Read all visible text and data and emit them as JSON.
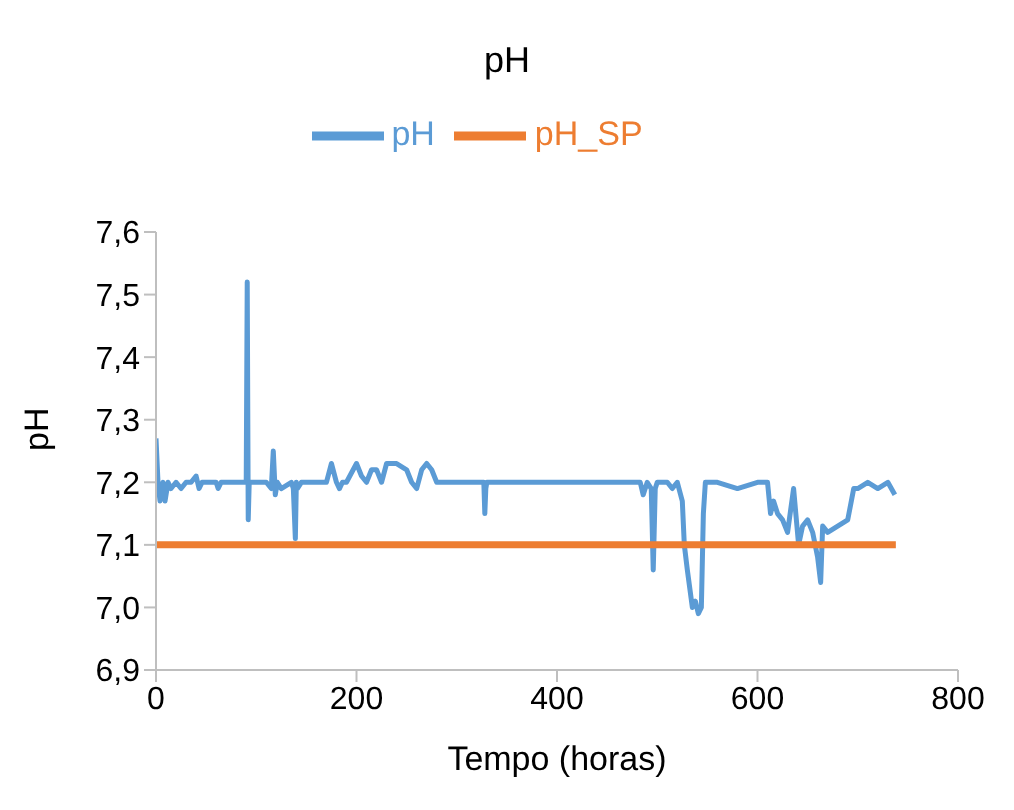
{
  "chart_data": {
    "type": "line",
    "title": "pH",
    "xlabel": "Tempo (horas)",
    "ylabel": "pH",
    "legend": "top",
    "grid": false,
    "marker": "none",
    "xlim": [
      0,
      800
    ],
    "xticks": [
      0,
      200,
      400,
      600,
      800
    ],
    "ylim": [
      6.9,
      7.6
    ],
    "yticks": [
      {
        "value": 6.9,
        "label": "6,9"
      },
      {
        "value": 7.0,
        "label": "7,0"
      },
      {
        "value": 7.1,
        "label": "7,1"
      },
      {
        "value": 7.2,
        "label": "7,2"
      },
      {
        "value": 7.3,
        "label": "7,3"
      },
      {
        "value": 7.4,
        "label": "7,4"
      },
      {
        "value": 7.5,
        "label": "7,5"
      },
      {
        "value": 7.6,
        "label": "7,6"
      }
    ],
    "series": [
      {
        "name": "pH",
        "color": "#5b9bd5",
        "x": [
          0,
          2,
          4,
          5,
          7,
          9,
          12,
          15,
          20,
          25,
          30,
          35,
          40,
          43,
          46,
          50,
          55,
          60,
          62,
          65,
          70,
          75,
          88,
          90,
          91,
          92,
          93,
          95,
          110,
          115,
          117,
          119,
          121,
          125,
          135,
          137,
          139,
          140,
          141,
          145,
          170,
          175,
          180,
          183,
          186,
          190,
          200,
          205,
          210,
          215,
          220,
          225,
          230,
          240,
          250,
          255,
          260,
          265,
          270,
          275,
          280,
          300,
          327,
          328,
          329,
          330,
          340,
          480,
          483,
          486,
          490,
          494,
          496,
          498,
          500,
          505,
          510,
          515,
          520,
          525,
          527,
          530,
          535,
          538,
          541,
          544,
          546,
          548,
          552,
          560,
          580,
          600,
          610,
          613,
          616,
          620,
          625,
          630,
          636,
          641,
          645,
          650,
          655,
          660,
          663,
          665,
          670,
          680,
          690,
          696,
          700,
          710,
          720,
          730,
          737
        ],
        "values": [
          7.27,
          7.2,
          7.17,
          7.19,
          7.2,
          7.17,
          7.2,
          7.19,
          7.2,
          7.19,
          7.2,
          7.2,
          7.21,
          7.19,
          7.2,
          7.2,
          7.2,
          7.2,
          7.19,
          7.2,
          7.2,
          7.2,
          7.2,
          7.2,
          7.52,
          7.14,
          7.2,
          7.2,
          7.2,
          7.19,
          7.25,
          7.18,
          7.2,
          7.19,
          7.2,
          7.19,
          7.11,
          7.2,
          7.19,
          7.2,
          7.2,
          7.23,
          7.2,
          7.19,
          7.2,
          7.2,
          7.23,
          7.21,
          7.2,
          7.22,
          7.22,
          7.2,
          7.23,
          7.23,
          7.22,
          7.2,
          7.19,
          7.22,
          7.23,
          7.22,
          7.2,
          7.2,
          7.2,
          7.15,
          7.19,
          7.2,
          7.2,
          7.2,
          7.2,
          7.18,
          7.2,
          7.19,
          7.06,
          7.19,
          7.2,
          7.2,
          7.2,
          7.19,
          7.2,
          7.17,
          7.1,
          7.06,
          7.0,
          7.01,
          6.99,
          7.0,
          7.15,
          7.2,
          7.2,
          7.2,
          7.19,
          7.2,
          7.2,
          7.15,
          7.17,
          7.15,
          7.14,
          7.12,
          7.19,
          7.1,
          7.13,
          7.14,
          7.12,
          7.08,
          7.04,
          7.13,
          7.12,
          7.13,
          7.14,
          7.19,
          7.19,
          7.2,
          7.19,
          7.2,
          7.18
        ]
      },
      {
        "name": "pH_SP",
        "color": "#ed7d31",
        "x": [
          0,
          738
        ],
        "values": [
          7.1,
          7.1
        ]
      }
    ]
  }
}
